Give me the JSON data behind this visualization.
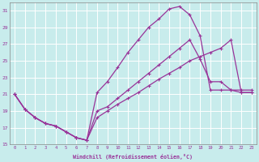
{
  "xlabel": "Windchill (Refroidissement éolien,°C)",
  "background_color": "#c8ecec",
  "line_color": "#993399",
  "grid_color": "#ffffff",
  "xlim": [
    -0.5,
    23.5
  ],
  "ylim": [
    15,
    32
  ],
  "yticks": [
    15,
    17,
    19,
    21,
    23,
    25,
    27,
    29,
    31
  ],
  "xticks": [
    0,
    1,
    2,
    3,
    4,
    5,
    6,
    7,
    8,
    9,
    10,
    11,
    12,
    13,
    14,
    15,
    16,
    17,
    18,
    19,
    20,
    21,
    22,
    23
  ],
  "series": [
    [
      21,
      19.2,
      18.2,
      17.5,
      17.2,
      16.5,
      15.8,
      15.5,
      18.2,
      19.0,
      19.8,
      20.5,
      21.2,
      22.0,
      22.8,
      23.5,
      24.2,
      25.0,
      25.5,
      26.0,
      26.5,
      27.5,
      21.2,
      21.2
    ],
    [
      21,
      19.2,
      18.2,
      17.5,
      17.2,
      16.5,
      15.8,
      15.5,
      21.2,
      22.5,
      24.2,
      26.0,
      27.5,
      29.0,
      30.0,
      31.2,
      31.5,
      30.5,
      28.0,
      21.5,
      21.5,
      21.5,
      21.5,
      21.5
    ],
    [
      21,
      19.2,
      18.2,
      17.5,
      17.2,
      16.5,
      15.8,
      15.5,
      19.0,
      19.5,
      20.5,
      21.5,
      22.5,
      23.5,
      24.5,
      25.5,
      26.5,
      27.5,
      25.2,
      22.5,
      22.5,
      21.5,
      21.2,
      21.2
    ]
  ]
}
